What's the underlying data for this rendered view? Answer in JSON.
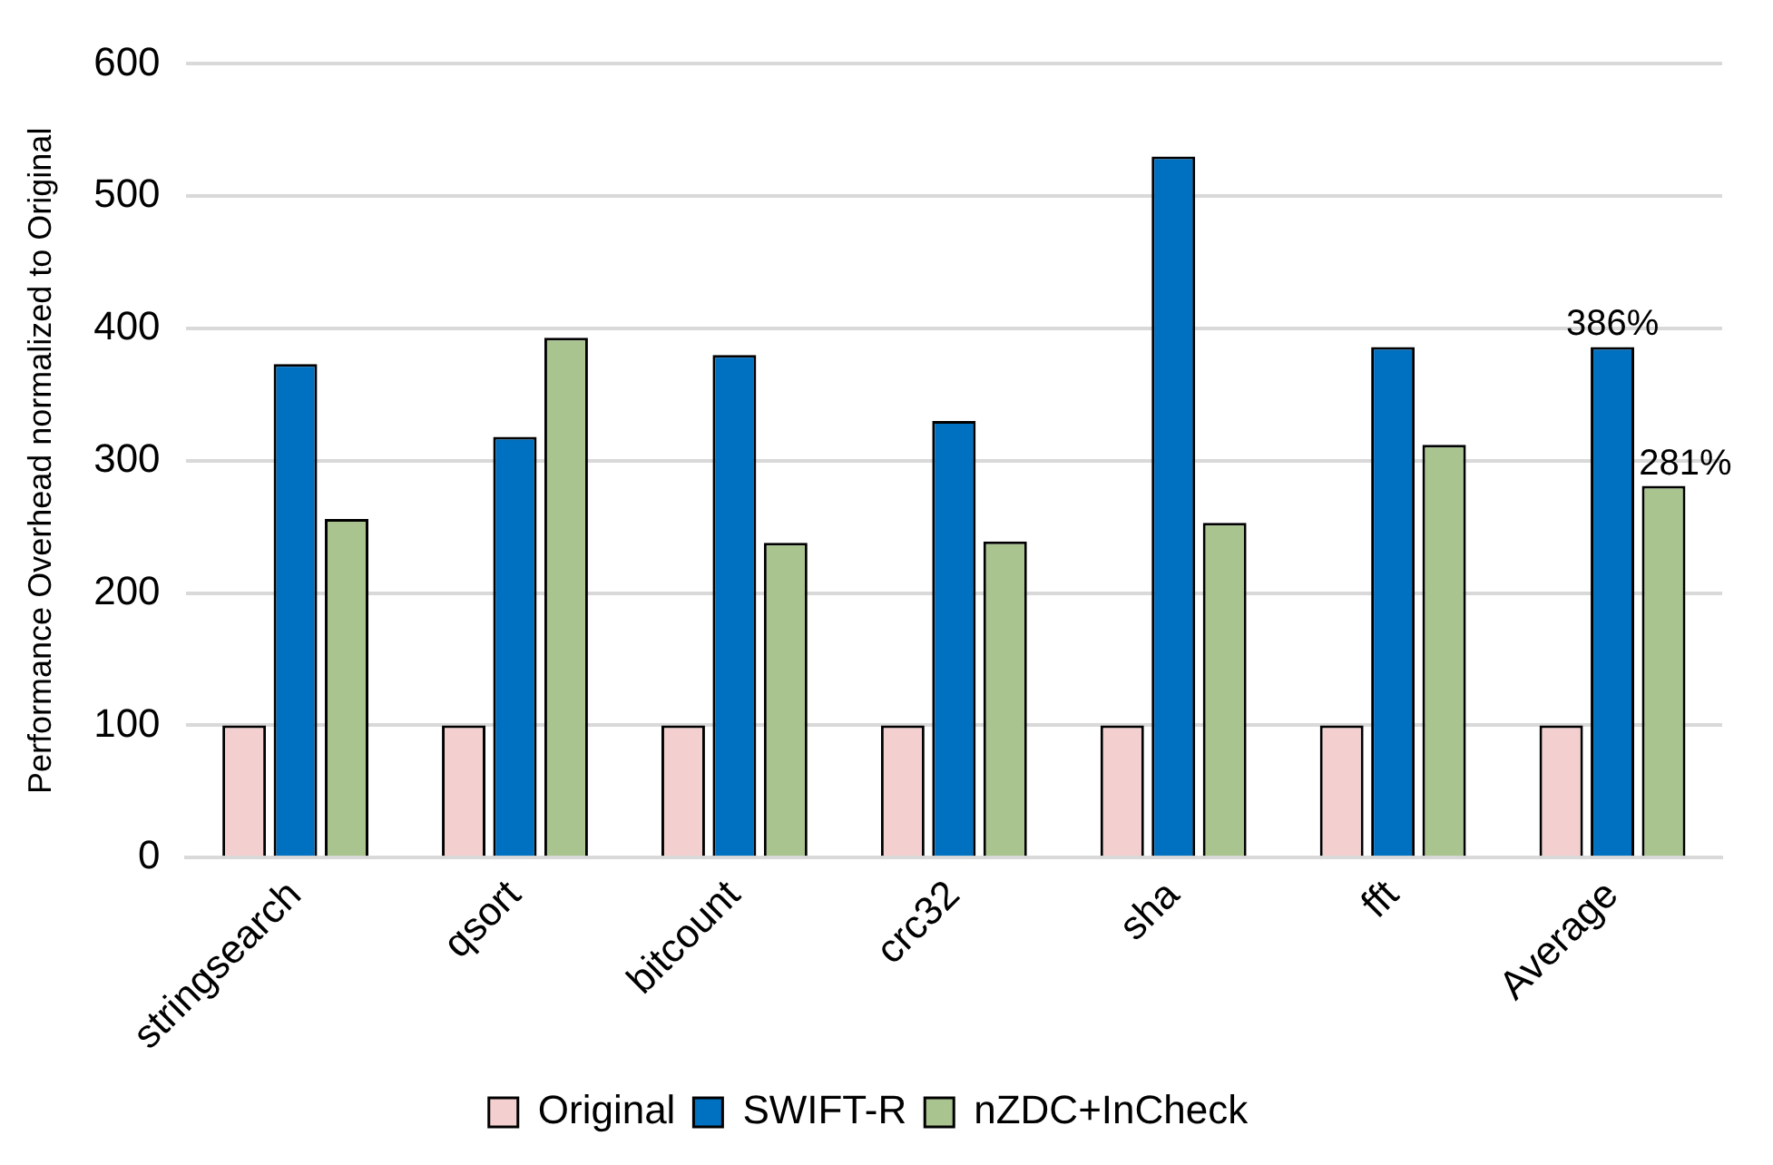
{
  "chart_data": {
    "type": "bar",
    "ylabel": "Performance Overhead normalized to Original",
    "categories": [
      "stringsearch",
      "qsort",
      "bitcount",
      "crc32",
      "sha",
      "fft",
      "Average"
    ],
    "series": [
      {
        "name": "Original",
        "color": "#f3cfcf",
        "values": [
          100,
          100,
          100,
          100,
          100,
          100,
          100
        ]
      },
      {
        "name": "SWIFT-R",
        "color": "#0070c0",
        "values": [
          373,
          318,
          380,
          330,
          530,
          386,
          386
        ],
        "value_labels": [
          null,
          null,
          null,
          null,
          null,
          null,
          "386%"
        ]
      },
      {
        "name": "nZDC+InCheck",
        "color": "#a9c48f",
        "values": [
          256,
          393,
          238,
          239,
          253,
          312,
          281
        ],
        "value_labels": [
          null,
          null,
          null,
          null,
          null,
          null,
          "281%"
        ]
      }
    ],
    "ylim": [
      0,
      600
    ],
    "yticks": [
      0,
      100,
      200,
      300,
      400,
      500,
      600
    ],
    "grid": "y",
    "legend": "bottom"
  }
}
